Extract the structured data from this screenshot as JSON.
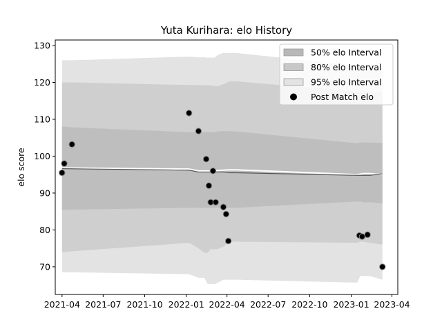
{
  "chart_data": {
    "type": "line",
    "title": "Yuta Kurihara: elo History",
    "xlabel": "",
    "ylabel": "elo score",
    "xlim": [
      "2021-03-17",
      "2023-04-14"
    ],
    "ylim": [
      62.5,
      131.5
    ],
    "x_ticks": [
      {
        "date": "2021-04-01",
        "label": "2021-04"
      },
      {
        "date": "2021-07-01",
        "label": "2021-07"
      },
      {
        "date": "2021-10-01",
        "label": "2021-10"
      },
      {
        "date": "2022-01-01",
        "label": "2022-01"
      },
      {
        "date": "2022-04-01",
        "label": "2022-04"
      },
      {
        "date": "2022-07-01",
        "label": "2022-07"
      },
      {
        "date": "2022-10-01",
        "label": "2022-10"
      },
      {
        "date": "2023-01-01",
        "label": "2023-01"
      },
      {
        "date": "2023-04-01",
        "label": "2023-04"
      }
    ],
    "y_ticks": [
      70,
      80,
      90,
      100,
      110,
      120,
      130
    ],
    "grid": false,
    "legend_position": "top-right",
    "colors": {
      "band95": "#e3e3e3",
      "band80": "#c8c8c8",
      "band50": "#b8b8b8",
      "mean_line": "#ffffff",
      "median_line": "#555555",
      "points": "#000000"
    },
    "legend": [
      {
        "label": "50% elo Interval",
        "kind": "band50"
      },
      {
        "label": "80% elo Interval",
        "kind": "band80"
      },
      {
        "label": "95% elo Interval",
        "kind": "band95"
      },
      {
        "label": "Post Match elo",
        "kind": "point"
      }
    ],
    "bands": {
      "x": [
        "2021-04-01",
        "2021-04-06",
        "2021-04-23",
        "2022-01-07",
        "2022-01-28",
        "2022-02-10",
        "2022-02-17",
        "2022-02-24",
        "2022-03-05",
        "2022-03-12",
        "2022-03-24",
        "2022-04-07",
        "2022-04-14",
        "2022-04-21",
        "2023-01-14",
        "2023-01-21",
        "2023-01-28",
        "2023-02-11",
        "2023-03-11"
      ],
      "p95_low": [
        68.5,
        68.5,
        68.5,
        68.0,
        67.0,
        67.0,
        65.3,
        65.3,
        65.3,
        65.7,
        66.5,
        66.5,
        66.5,
        66.5,
        65.7,
        67.5,
        67.5,
        67.5,
        66.5
      ],
      "p95_high": [
        126.0,
        126.0,
        126.0,
        127.0,
        126.8,
        126.8,
        126.7,
        126.7,
        126.7,
        127.5,
        128.0,
        128.0,
        128.0,
        128.0,
        124.5,
        124.5,
        124.5,
        124.5,
        123.0
      ],
      "p80_low": [
        74.0,
        74.0,
        74.2,
        76.5,
        75.0,
        73.8,
        73.8,
        74.8,
        74.8,
        74.8,
        75.5,
        76.8,
        76.8,
        76.8,
        76.5,
        76.8,
        76.8,
        76.5,
        76.0
      ],
      "p80_high": [
        120.0,
        120.0,
        120.0,
        119.3,
        119.3,
        119.3,
        119.2,
        119.2,
        119.0,
        119.0,
        119.5,
        120.3,
        120.3,
        120.3,
        117.5,
        117.5,
        117.5,
        117.5,
        117.5
      ],
      "p50_low": [
        85.5,
        85.5,
        85.5,
        86.0,
        86.0,
        86.0,
        86.0,
        86.0,
        86.0,
        86.0,
        86.0,
        86.0,
        86.0,
        86.0,
        87.7,
        87.7,
        87.5,
        87.5,
        87.2
      ],
      "p50_high": [
        108.0,
        108.0,
        107.8,
        106.5,
        106.5,
        106.5,
        106.5,
        106.5,
        106.5,
        106.7,
        106.8,
        106.8,
        106.7,
        106.7,
        103.5,
        103.7,
        103.7,
        103.7,
        103.6
      ]
    },
    "mean_line": {
      "x": [
        "2021-04-01",
        "2021-04-06",
        "2022-01-07",
        "2022-01-28",
        "2022-02-24",
        "2022-03-24",
        "2022-04-07",
        "2022-04-21",
        "2023-01-14",
        "2023-01-28",
        "2023-02-11",
        "2023-03-11"
      ],
      "y": [
        96.8,
        96.8,
        96.5,
        96.0,
        96.0,
        96.2,
        96.3,
        96.3,
        95.0,
        95.3,
        95.3,
        95.0
      ]
    },
    "median_line": {
      "x": [
        "2021-04-01",
        "2021-04-06",
        "2022-01-07",
        "2022-01-28",
        "2022-02-24",
        "2022-03-24",
        "2022-04-07",
        "2022-04-21",
        "2023-01-14",
        "2023-01-28",
        "2023-02-11",
        "2023-03-11"
      ],
      "y": [
        96.6,
        96.6,
        96.2,
        95.7,
        95.7,
        95.7,
        95.5,
        95.5,
        94.8,
        94.8,
        94.8,
        95.2
      ]
    },
    "points": [
      {
        "date": "2021-04-01",
        "elo": 95.5
      },
      {
        "date": "2021-04-06",
        "elo": 98.0
      },
      {
        "date": "2021-04-23",
        "elo": 103.2
      },
      {
        "date": "2022-01-07",
        "elo": 111.7
      },
      {
        "date": "2022-01-28",
        "elo": 106.8
      },
      {
        "date": "2022-02-14",
        "elo": 99.2
      },
      {
        "date": "2022-02-20",
        "elo": 92.0
      },
      {
        "date": "2022-02-24",
        "elo": 87.5
      },
      {
        "date": "2022-03-01",
        "elo": 96.0
      },
      {
        "date": "2022-03-07",
        "elo": 87.5
      },
      {
        "date": "2022-03-24",
        "elo": 86.2
      },
      {
        "date": "2022-03-30",
        "elo": 84.3
      },
      {
        "date": "2022-04-04",
        "elo": 77.0
      },
      {
        "date": "2023-01-19",
        "elo": 78.5
      },
      {
        "date": "2023-01-25",
        "elo": 78.2
      },
      {
        "date": "2023-02-06",
        "elo": 78.7
      },
      {
        "date": "2023-03-11",
        "elo": 70.0
      }
    ]
  }
}
